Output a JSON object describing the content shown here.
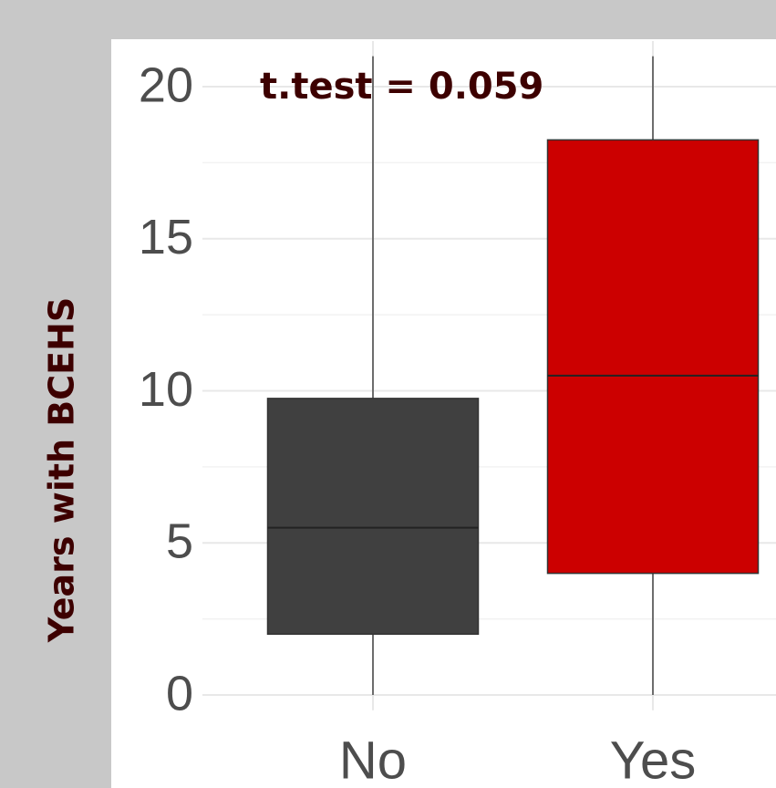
{
  "chart_data": {
    "type": "box",
    "y_label": "Years with BCEHS",
    "annotation": "t.test = 0.059",
    "categories": [
      "No",
      "Yes"
    ],
    "boxes": [
      {
        "min": 0,
        "q1": 2,
        "median": 5.5,
        "q3": 9.75,
        "max": 21,
        "color": "#404040"
      },
      {
        "min": 0,
        "q1": 4,
        "median": 10.5,
        "q3": 18.25,
        "max": 21,
        "color": "#cc0000"
      }
    ],
    "ylim": [
      -0.5,
      21.5
    ],
    "yticks": [
      0,
      5,
      10,
      15,
      20
    ],
    "yminorticks": [
      2.5,
      7.5,
      12.5,
      17.5
    ],
    "grid": true
  }
}
